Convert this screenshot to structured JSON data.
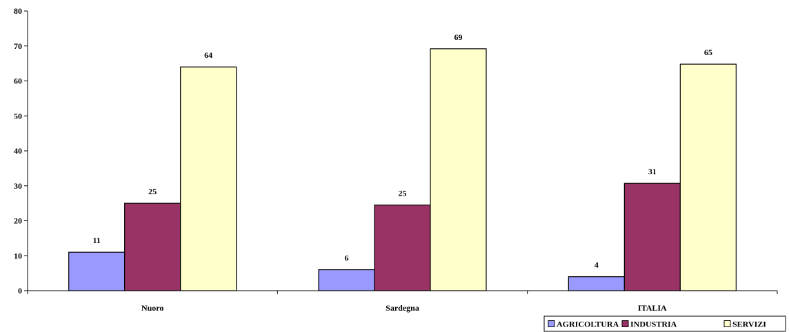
{
  "chart_data": {
    "type": "bar",
    "categories": [
      "Nuoro",
      "Sardegna",
      "ITALIA"
    ],
    "series": [
      {
        "name": "AGRICOLTURA",
        "values": [
          11,
          6,
          4
        ],
        "value_labels": [
          "11",
          "6",
          "4"
        ],
        "color": "#9999ff"
      },
      {
        "name": "INDUSTRIA",
        "values": [
          25,
          24.5,
          30.7
        ],
        "value_labels": [
          "25",
          "25",
          "31"
        ],
        "color": "#993366"
      },
      {
        "name": "SERVIZI",
        "values": [
          64,
          69.2,
          64.8
        ],
        "value_labels": [
          "64",
          "69",
          "65"
        ],
        "color": "#ffffcc"
      }
    ],
    "ylim": [
      0,
      80
    ],
    "yticks": [
      0,
      10,
      20,
      30,
      40,
      50,
      60,
      70,
      80
    ],
    "grid": false,
    "legend_position": "bottom-right"
  }
}
